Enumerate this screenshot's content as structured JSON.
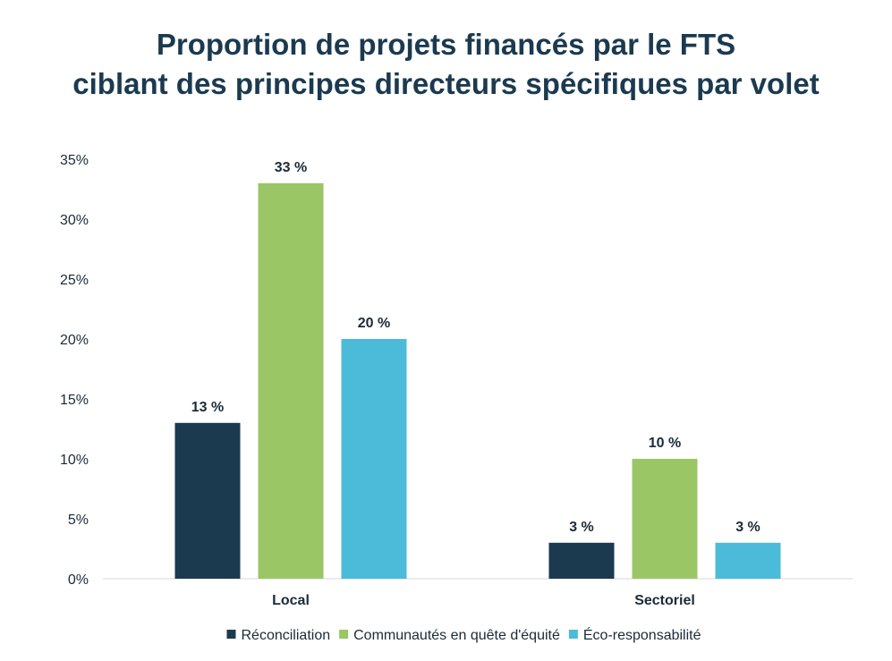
{
  "chart_data": {
    "type": "bar",
    "title_lines": [
      "Proportion de projets financés par le FTS",
      "ciblant des principes directeurs spécifiques par volet"
    ],
    "categories": [
      "Local",
      "Sectoriel"
    ],
    "series": [
      {
        "name": "Réconciliation",
        "color": "#1b3a50",
        "values": [
          13,
          3
        ],
        "labels": [
          "13 %",
          "3 %"
        ]
      },
      {
        "name": "Communautés en quête d'équité",
        "color": "#9bc665",
        "values": [
          33,
          10
        ],
        "labels": [
          "33 %",
          "10 %"
        ]
      },
      {
        "name": "Éco-responsabilité",
        "color": "#4bbbd9",
        "values": [
          20,
          3
        ],
        "labels": [
          "20 %",
          "3 %"
        ]
      }
    ],
    "ylim": [
      0,
      35
    ],
    "yticks": [
      {
        "value": 0,
        "label": "0%"
      },
      {
        "value": 5,
        "label": "5%"
      },
      {
        "value": 10,
        "label": "10%"
      },
      {
        "value": 15,
        "label": "15%"
      },
      {
        "value": 20,
        "label": "20%"
      },
      {
        "value": 25,
        "label": "25%"
      },
      {
        "value": 30,
        "label": "30%"
      },
      {
        "value": 35,
        "label": "35%"
      }
    ],
    "grid": false,
    "legend_position": "bottom"
  }
}
